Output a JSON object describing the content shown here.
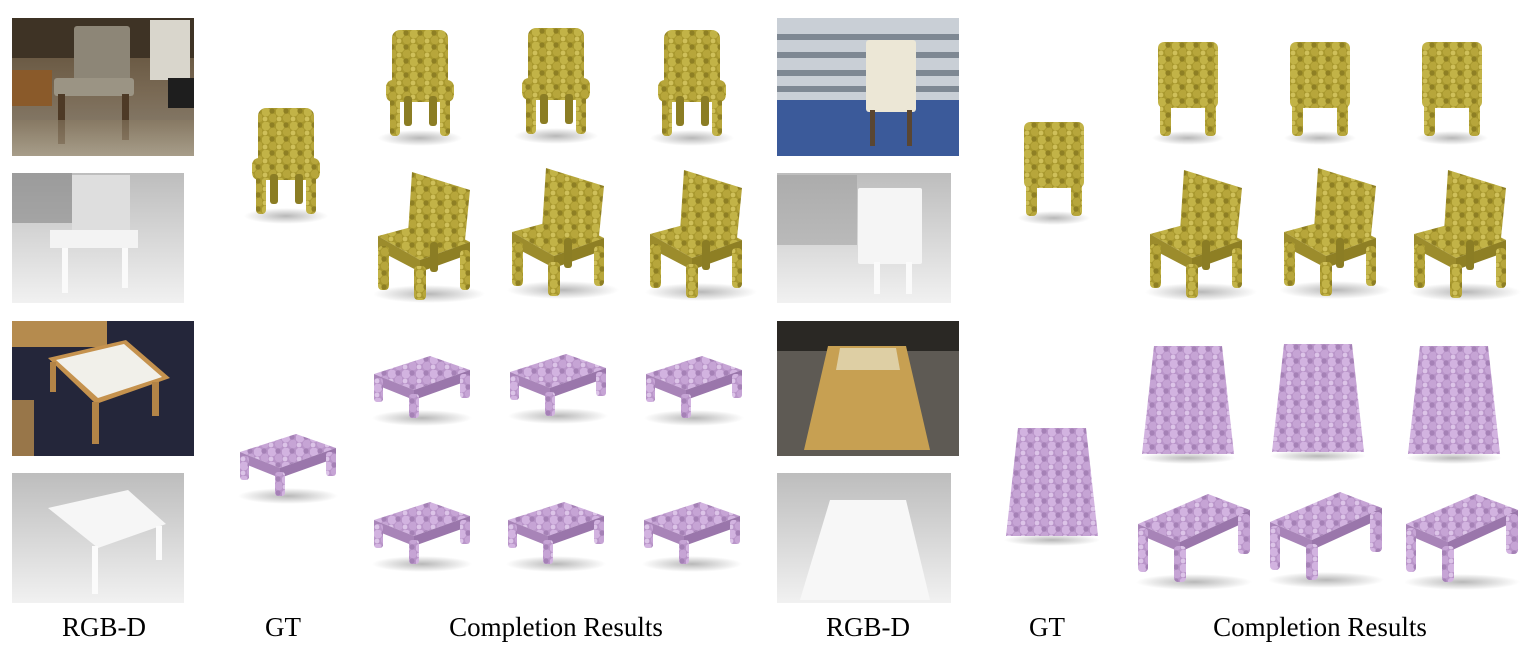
{
  "captions": {
    "left_rgbd": "RGB-D",
    "left_gt": "GT",
    "left_results": "Completion Results",
    "right_rgbd": "RGB-D",
    "right_gt": "GT",
    "right_results": "Completion Results"
  },
  "colors": {
    "chair_points": "#b5a53a",
    "table_points": "#c8a6d6",
    "carpet_blue": "#3b5a9a",
    "depth_gray": "#d9d9d9",
    "wood": "#c9a45a"
  }
}
